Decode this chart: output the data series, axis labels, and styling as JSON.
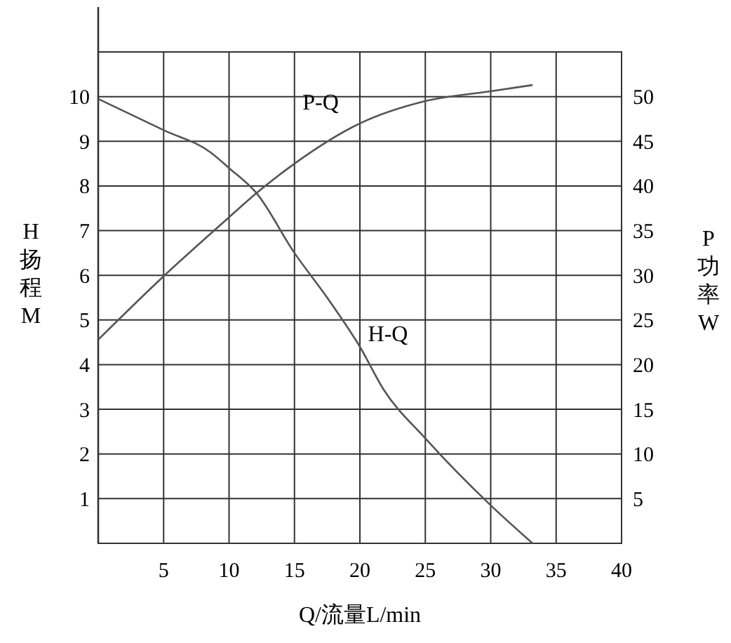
{
  "chart_data": {
    "type": "line",
    "xlabel": "Q/流量L/min",
    "ylabel": "H扬程M",
    "y2label": "P功率W",
    "xlim": [
      0,
      40
    ],
    "xticks": [
      5,
      10,
      15,
      20,
      25,
      30,
      35,
      40
    ],
    "ylim": [
      0,
      11
    ],
    "yticks": [
      1,
      2,
      3,
      4,
      5,
      6,
      7,
      8,
      9,
      10
    ],
    "y2lim": [
      0,
      55
    ],
    "y2ticks": [
      5,
      10,
      15,
      20,
      25,
      30,
      35,
      40,
      45,
      50
    ],
    "grid": true,
    "series": [
      {
        "name": "H-Q",
        "color": "#555555",
        "x": [
          0,
          5,
          8.6,
          10,
          12.1,
          15,
          17.5,
          20,
          21.8,
          25,
          30,
          33.2
        ],
        "values": [
          9.95,
          9.25,
          8.75,
          8.4,
          7.84,
          6.5,
          5.5,
          4.4,
          3.45,
          2.35,
          0.85,
          0
        ]
      },
      {
        "name": "P-Q",
        "color": "#555555",
        "axis": "y2",
        "x": [
          0,
          5,
          10,
          12.1,
          15,
          20,
          25,
          30,
          33.2
        ],
        "values": [
          22.8,
          29.9,
          36.5,
          39.2,
          42.5,
          47,
          49.5,
          50.6,
          51.3
        ]
      }
    ]
  }
}
